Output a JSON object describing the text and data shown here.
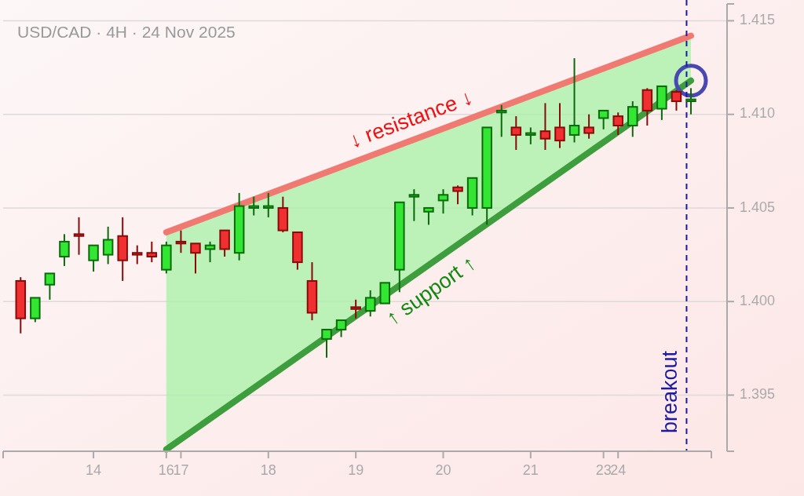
{
  "chart_data": {
    "type": "candlestick",
    "title": "USD/CAD · 4H · 24 Nov 2025",
    "categories": [
      null,
      null,
      null,
      null,
      null,
      "14",
      null,
      null,
      null,
      null,
      "16",
      "17",
      null,
      null,
      null,
      null,
      null,
      "18",
      null,
      null,
      null,
      null,
      null,
      "19",
      null,
      null,
      null,
      null,
      null,
      "20",
      null,
      null,
      null,
      null,
      null,
      "21",
      null,
      null,
      null,
      null,
      "23",
      "24",
      null,
      null,
      null,
      null,
      null
    ],
    "ohlc": [
      [
        1.4011,
        1.4013,
        1.3983,
        1.3991
      ],
      [
        1.3991,
        1.4002,
        1.3989,
        1.4002
      ],
      [
        1.4009,
        1.4015,
        1.4001,
        1.4015
      ],
      [
        1.4024,
        1.4036,
        1.4019,
        1.4032
      ],
      [
        1.4036,
        1.4045,
        1.4025,
        1.4035
      ],
      [
        1.4022,
        1.403,
        1.4016,
        1.403
      ],
      [
        1.4025,
        1.404,
        1.402,
        1.4033
      ],
      [
        1.4035,
        1.4045,
        1.4011,
        1.4022
      ],
      [
        1.4026,
        1.403,
        1.402,
        1.4025
      ],
      [
        1.4026,
        1.4032,
        1.4021,
        1.4024
      ],
      [
        1.4017,
        1.4032,
        1.4015,
        1.403
      ],
      [
        1.4032,
        1.4038,
        1.4026,
        1.4031
      ],
      [
        1.4031,
        1.4031,
        1.4015,
        1.4026
      ],
      [
        1.4028,
        1.4032,
        1.4021,
        1.403
      ],
      [
        1.4038,
        1.4038,
        1.4024,
        1.4028
      ],
      [
        1.4026,
        1.4058,
        1.4022,
        1.4051
      ],
      [
        1.405,
        1.4056,
        1.4046,
        1.4051
      ],
      [
        1.405,
        1.4058,
        1.4045,
        1.4051
      ],
      [
        1.405,
        1.4056,
        1.4037,
        1.4038
      ],
      [
        1.4037,
        1.4037,
        1.4017,
        1.4021
      ],
      [
        1.4011,
        1.4021,
        1.399,
        1.3994
      ],
      [
        1.398,
        1.3985,
        1.397,
        1.3985
      ],
      [
        1.3985,
        1.399,
        1.3981,
        1.399
      ],
      [
        1.3997,
        1.4001,
        1.3991,
        1.3996
      ],
      [
        1.3995,
        1.4006,
        1.3992,
        1.4002
      ],
      [
        1.3999,
        1.401,
        1.3999,
        1.401
      ],
      [
        1.4017,
        1.4053,
        1.4005,
        1.4053
      ],
      [
        1.4056,
        1.406,
        1.4043,
        1.4057
      ],
      [
        1.4048,
        1.405,
        1.4041,
        1.405
      ],
      [
        1.4054,
        1.406,
        1.4047,
        1.4057
      ],
      [
        1.4061,
        1.4062,
        1.4052,
        1.4059
      ],
      [
        1.405,
        1.4066,
        1.4046,
        1.4066
      ],
      [
        1.405,
        1.4093,
        1.4041,
        1.4093
      ],
      [
        1.4101,
        1.4105,
        1.4088,
        1.4102
      ],
      [
        1.4093,
        1.4099,
        1.4081,
        1.4089
      ],
      [
        1.4089,
        1.4093,
        1.4084,
        1.409
      ],
      [
        1.4091,
        1.4106,
        1.4081,
        1.4087
      ],
      [
        1.4093,
        1.4106,
        1.4082,
        1.4086
      ],
      [
        1.4089,
        1.413,
        1.4085,
        1.4094
      ],
      [
        1.4093,
        1.41,
        1.4087,
        1.409
      ],
      [
        1.4098,
        1.4102,
        1.4092,
        1.4102
      ],
      [
        1.4099,
        1.4101,
        1.4089,
        1.4094
      ],
      [
        1.4094,
        1.4107,
        1.4088,
        1.4104
      ],
      [
        1.4113,
        1.4114,
        1.4094,
        1.4102
      ],
      [
        1.4103,
        1.4115,
        1.4097,
        1.4115
      ],
      [
        1.4112,
        1.4113,
        1.4102,
        1.4107
      ],
      [
        1.4107,
        1.4114,
        1.41,
        1.4108
      ]
    ],
    "series": [
      {
        "name": "↓ resistance ↓",
        "type": "line",
        "color": "#f07a72",
        "values": [
          null,
          null,
          null,
          null,
          null,
          null,
          null,
          null,
          null,
          null,
          1.4037,
          null,
          null,
          null,
          null,
          null,
          null,
          null,
          null,
          null,
          null,
          null,
          null,
          null,
          null,
          null,
          null,
          null,
          null,
          null,
          null,
          null,
          null,
          null,
          null,
          null,
          null,
          null,
          null,
          null,
          null,
          null,
          null,
          null,
          null,
          null,
          1.4142
        ]
      },
      {
        "name": "↑ support ↑",
        "type": "line",
        "color": "#3e9e3e",
        "values": [
          null,
          null,
          null,
          null,
          null,
          null,
          null,
          null,
          null,
          null,
          1.3921,
          null,
          null,
          null,
          null,
          null,
          null,
          null,
          null,
          null,
          null,
          null,
          null,
          null,
          null,
          null,
          null,
          null,
          null,
          null,
          null,
          null,
          null,
          null,
          null,
          null,
          null,
          null,
          null,
          null,
          null,
          null,
          null,
          null,
          null,
          null,
          1.4118
        ],
        "lower": [
          null,
          null,
          null,
          null,
          null,
          null,
          null,
          null,
          null,
          null,
          1.3921,
          null,
          null,
          null,
          null,
          null,
          null,
          null,
          null,
          null,
          null,
          null,
          null,
          null,
          null,
          null,
          null,
          null,
          null,
          null,
          null,
          null,
          null,
          null,
          null,
          null,
          null,
          null,
          null,
          null,
          null,
          null,
          null,
          null,
          null,
          null,
          1.4118
        ],
        "upper": [
          null,
          null,
          null,
          null,
          null,
          null,
          null,
          null,
          null,
          null,
          1.4037,
          null,
          null,
          null,
          null,
          null,
          null,
          null,
          null,
          null,
          null,
          null,
          null,
          null,
          null,
          null,
          null,
          null,
          null,
          null,
          null,
          null,
          null,
          null,
          null,
          null,
          null,
          null,
          null,
          null,
          null,
          null,
          null,
          null,
          null,
          null,
          1.4142
        ]
      },
      {
        "type": "scatter",
        "color": "#4848b0",
        "marker": "circle",
        "values": [
          null,
          null,
          null,
          null,
          null,
          null,
          null,
          null,
          null,
          null,
          null,
          null,
          null,
          null,
          null,
          null,
          null,
          null,
          null,
          null,
          null,
          null,
          null,
          null,
          null,
          null,
          null,
          null,
          null,
          null,
          null,
          null,
          null,
          null,
          null,
          null,
          null,
          null,
          null,
          null,
          null,
          null,
          null,
          null,
          null,
          null,
          1.4118
        ]
      }
    ],
    "ylim": [
      1.392,
      1.4159
    ],
    "yticks": [
      {
        "value": 1.395,
        "label": "1.395"
      },
      {
        "value": 1.4,
        "label": "1.400"
      },
      {
        "value": 1.405,
        "label": "1.405"
      },
      {
        "value": 1.41,
        "label": "1.410"
      },
      {
        "value": 1.415,
        "label": "1.415"
      }
    ],
    "annotations": [
      "breakout"
    ],
    "grid": "y",
    "legend": false
  }
}
